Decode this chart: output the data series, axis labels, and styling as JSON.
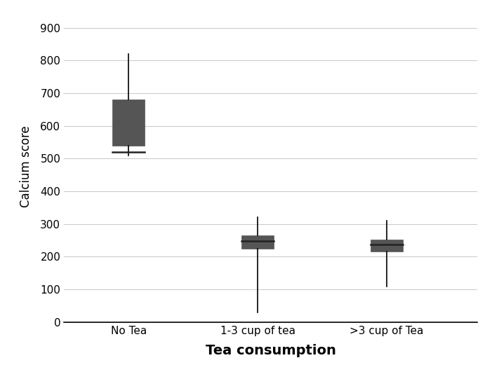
{
  "categories": [
    "No Tea",
    "1-3 cup of tea",
    ">3 cup of Tea"
  ],
  "boxes": [
    {
      "q1": 540,
      "median": 520,
      "q3": 680,
      "whisker_low": 510,
      "whisker_high": 820
    },
    {
      "q1": 225,
      "median": 248,
      "q3": 265,
      "whisker_low": 30,
      "whisker_high": 320
    },
    {
      "q1": 215,
      "median": 238,
      "q3": 252,
      "whisker_low": 108,
      "whisker_high": 310
    }
  ],
  "box_color": "#555555",
  "box_width": 0.25,
  "xlabel": "Tea consumption",
  "ylabel": "Calcium score",
  "ylim": [
    0,
    950
  ],
  "yticks": [
    0,
    100,
    200,
    300,
    400,
    500,
    600,
    700,
    800,
    900
  ],
  "background_color": "#ffffff",
  "grid_color": "#cccccc",
  "xlabel_fontsize": 14,
  "ylabel_fontsize": 12,
  "tick_fontsize": 11,
  "x_positions": [
    0,
    1,
    2
  ],
  "xlim": [
    -0.5,
    2.7
  ]
}
